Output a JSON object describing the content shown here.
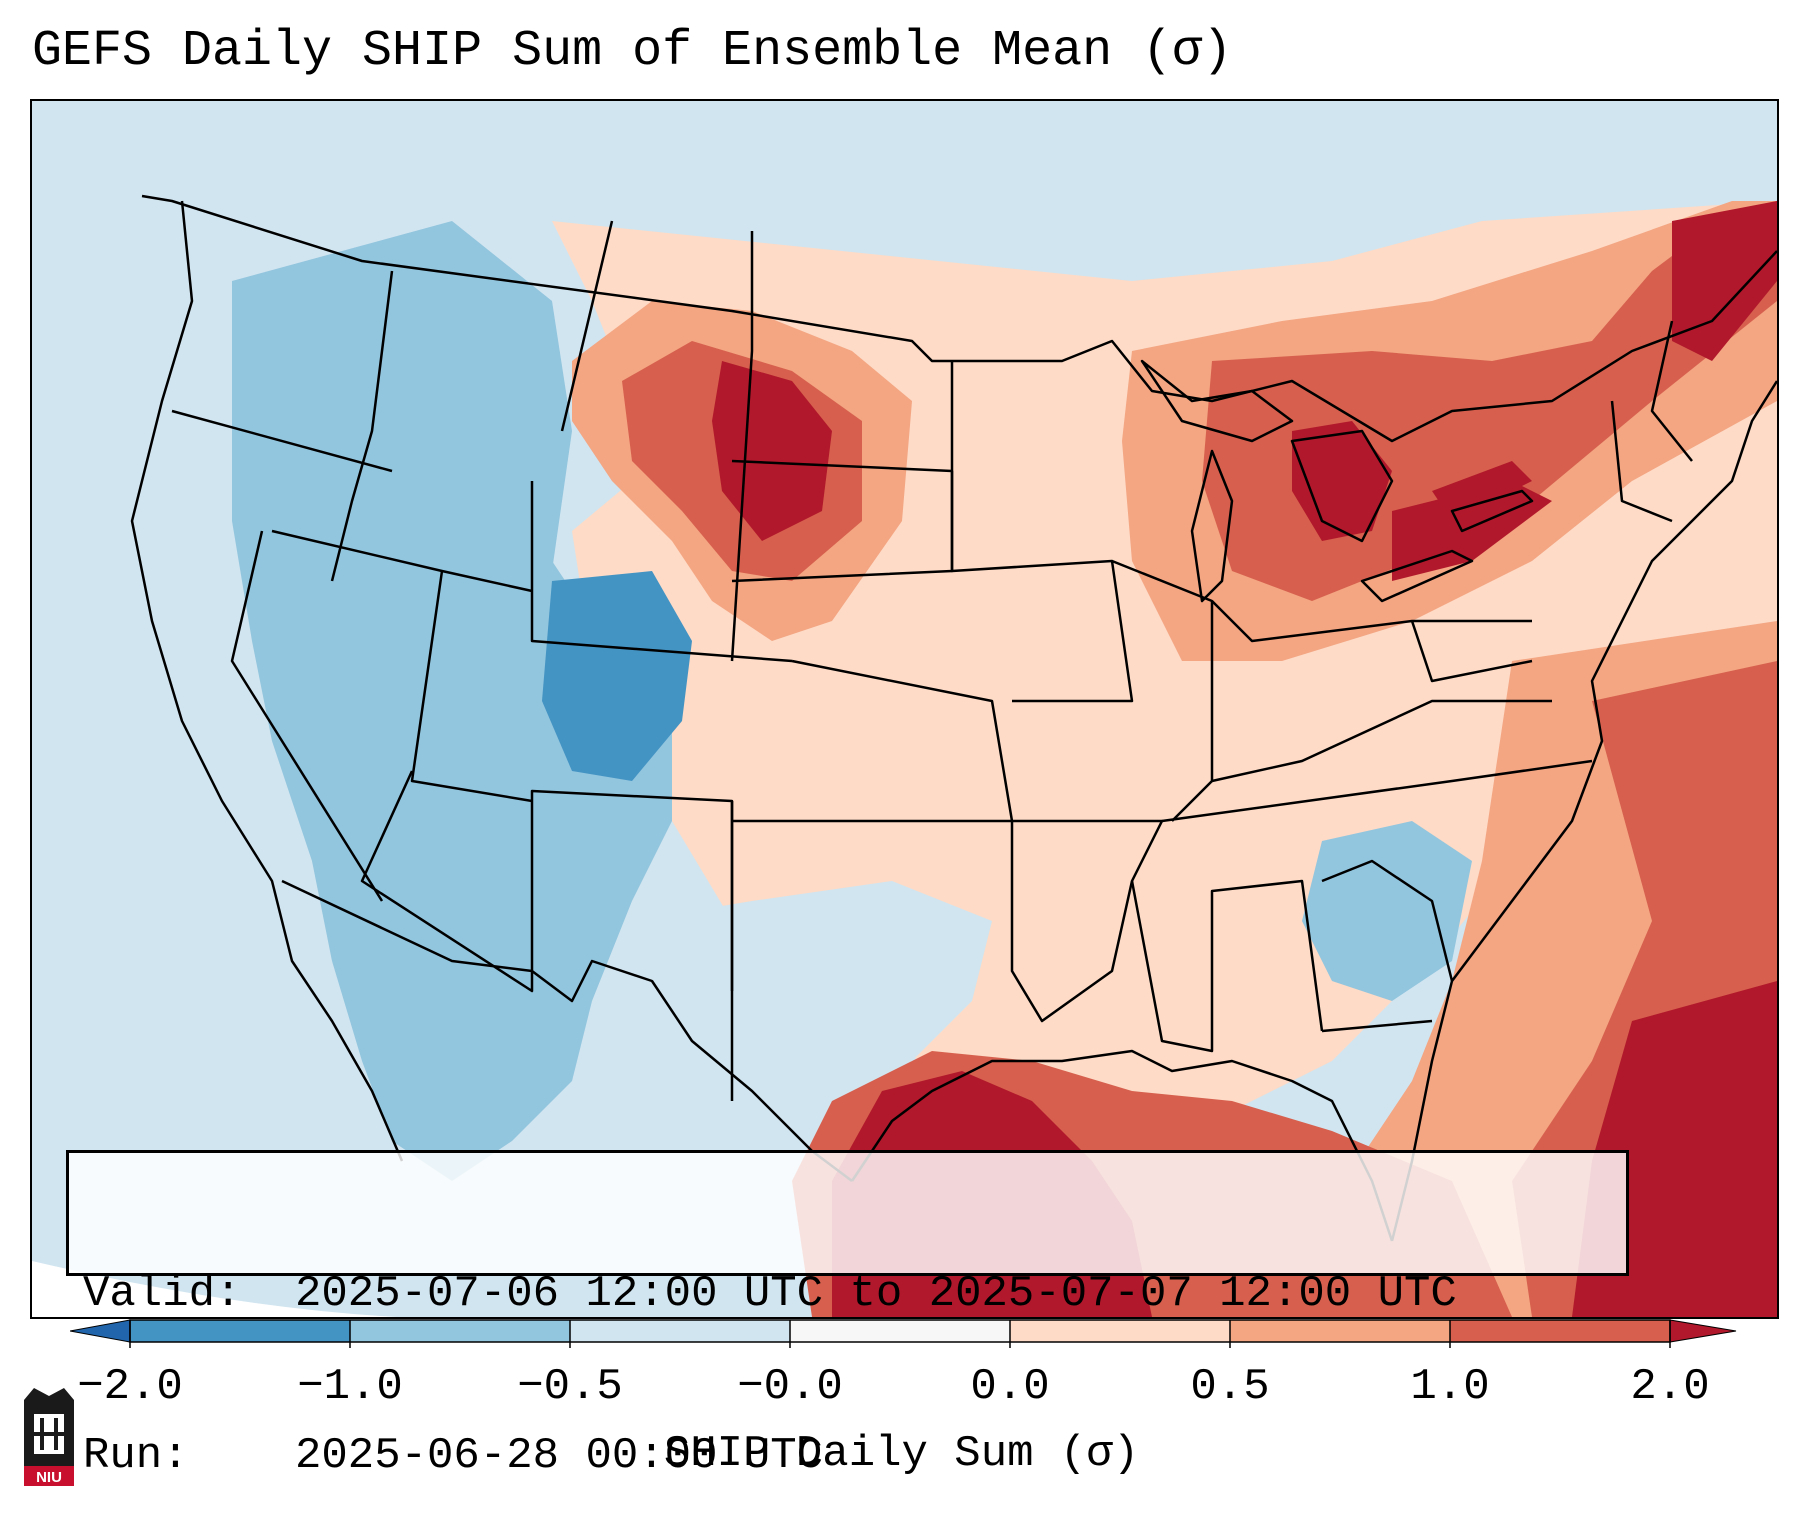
{
  "title": "GEFS Daily SHIP Sum of Ensemble Mean (σ)",
  "info": {
    "valid_label": "Valid:",
    "valid_value": "2025-07-06 12:00 UTC to 2025-07-07 12:00 UTC",
    "run_label": "Run:",
    "run_value": "2025-06-28 00:00 UTC"
  },
  "colorbar": {
    "title": "SHIP Daily Sum (σ)",
    "tick_labels": [
      "−2.0",
      "−1.0",
      "−0.5",
      "−0.0",
      "0.0",
      "0.5",
      "1.0",
      "2.0"
    ],
    "bin_colors": [
      "#4393c3",
      "#92c5de",
      "#d1e5f0",
      "#f7f7f7",
      "#fddbc7",
      "#f4a582",
      "#d6604d"
    ],
    "under_color": "#2166ac",
    "over_color": "#b2182b",
    "extend": "both"
  },
  "colors": {
    "strong_neg": "#4393c3",
    "mid_neg": "#92c5de",
    "weak_neg": "#d1e5f0",
    "neutral": "#f7f7f7",
    "weak_pos": "#fddbc7",
    "mid_pos": "#f4a582",
    "strong_pos": "#d6604d",
    "extreme_pos": "#b2182b",
    "border": "#000000"
  },
  "logo": {
    "label": "NIU"
  }
}
